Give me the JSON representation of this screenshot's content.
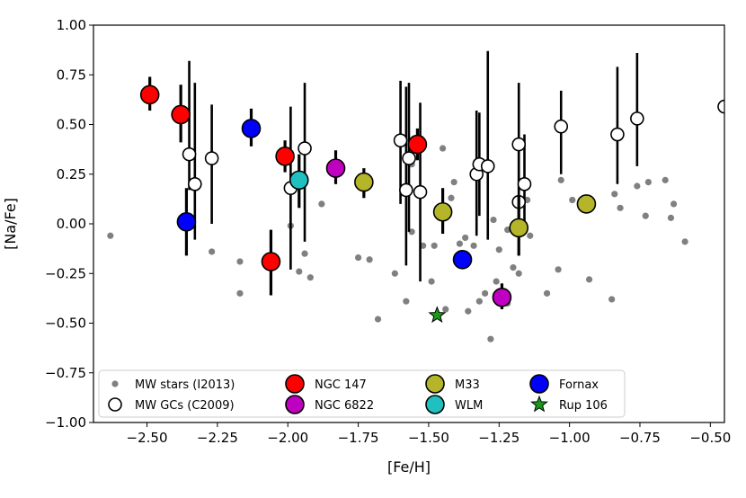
{
  "chart_data": {
    "type": "scatter",
    "xlabel": "[Fe/H]",
    "ylabel": "[Na/Fe]",
    "xlim": [
      -2.69,
      -0.45
    ],
    "ylim": [
      -1.0,
      1.0
    ],
    "xticks": [
      -2.5,
      -2.25,
      -2.0,
      -1.75,
      -1.5,
      -1.25,
      -1.0,
      -0.75,
      -0.5
    ],
    "xtick_labels": [
      "−2.50",
      "−2.25",
      "−2.00",
      "−1.75",
      "−1.50",
      "−1.25",
      "−1.00",
      "−0.75",
      "−0.50"
    ],
    "yticks": [
      1.0,
      0.75,
      0.5,
      0.25,
      0.0,
      -0.25,
      -0.5,
      -0.75,
      -1.0
    ],
    "ytick_labels": [
      "1.00",
      "0.75",
      "0.50",
      "0.25",
      "0.00",
      "−0.25",
      "−0.50",
      "−0.75",
      "−1.00"
    ],
    "legend": {
      "placement": "lower-center",
      "entries": [
        {
          "label": "MW stars (I2013)",
          "series": "mw_stars"
        },
        {
          "label": "NGC 147",
          "series": "ngc147"
        },
        {
          "label": "M33",
          "series": "m33"
        },
        {
          "label": "Fornax",
          "series": "fornax"
        },
        {
          "label": "MW GCs (C2009)",
          "series": "mw_gcs"
        },
        {
          "label": "NGC 6822",
          "series": "ngc6822"
        },
        {
          "label": "WLM",
          "series": "wlm"
        },
        {
          "label": "Rup 106",
          "series": "rup106"
        }
      ]
    },
    "series": [
      {
        "name": "MW stars (I2013)",
        "key": "mw_stars",
        "marker": "dot",
        "color": "#808080",
        "points": [
          [
            -2.63,
            -0.06
          ],
          [
            -2.27,
            -0.14
          ],
          [
            -2.17,
            -0.19
          ],
          [
            -2.17,
            -0.35
          ],
          [
            -1.99,
            -0.01
          ],
          [
            -1.96,
            -0.24
          ],
          [
            -1.94,
            -0.15
          ],
          [
            -1.92,
            -0.27
          ],
          [
            -1.88,
            0.1
          ],
          [
            -1.75,
            -0.17
          ],
          [
            -1.71,
            -0.18
          ],
          [
            -1.68,
            -0.48
          ],
          [
            -1.62,
            -0.25
          ],
          [
            -1.58,
            -0.39
          ],
          [
            -1.56,
            -0.04
          ],
          [
            -1.52,
            -0.11
          ],
          [
            -1.49,
            -0.29
          ],
          [
            -1.48,
            -0.11
          ],
          [
            -1.45,
            0.38
          ],
          [
            -1.44,
            -0.43
          ],
          [
            -1.42,
            0.13
          ],
          [
            -1.41,
            0.21
          ],
          [
            -1.39,
            -0.1
          ],
          [
            -1.37,
            -0.07
          ],
          [
            -1.36,
            -0.44
          ],
          [
            -1.34,
            -0.11
          ],
          [
            -1.32,
            -0.39
          ],
          [
            -1.3,
            -0.35
          ],
          [
            -1.28,
            -0.58
          ],
          [
            -1.27,
            0.02
          ],
          [
            -1.26,
            -0.29
          ],
          [
            -1.25,
            -0.13
          ],
          [
            -1.22,
            -0.03
          ],
          [
            -1.22,
            -0.4
          ],
          [
            -1.2,
            -0.22
          ],
          [
            -1.18,
            -0.25
          ],
          [
            -1.15,
            0.12
          ],
          [
            -1.14,
            -0.06
          ],
          [
            -1.08,
            -0.35
          ],
          [
            -1.04,
            -0.23
          ],
          [
            -1.03,
            0.22
          ],
          [
            -0.99,
            0.12
          ],
          [
            -0.93,
            -0.28
          ],
          [
            -0.85,
            -0.38
          ],
          [
            -0.84,
            0.15
          ],
          [
            -0.82,
            0.08
          ],
          [
            -0.76,
            0.19
          ],
          [
            -0.73,
            0.04
          ],
          [
            -0.72,
            0.21
          ],
          [
            -0.66,
            0.22
          ],
          [
            -0.64,
            0.03
          ],
          [
            -0.63,
            0.1
          ],
          [
            -0.59,
            -0.09
          ],
          [
            -1.56,
            0.3
          ]
        ]
      },
      {
        "name": "MW GCs (C2009)",
        "key": "mw_gcs",
        "marker": "circle",
        "color": "#ffffff",
        "points": [
          {
            "x": -2.35,
            "y": 0.35,
            "lo": 0.17,
            "hi": 0.82
          },
          {
            "x": -2.33,
            "y": 0.2,
            "lo": -0.08,
            "hi": 0.71
          },
          {
            "x": -2.27,
            "y": 0.33,
            "lo": 0.0,
            "hi": 0.6
          },
          {
            "x": -1.99,
            "y": 0.18,
            "lo": -0.23,
            "hi": 0.59
          },
          {
            "x": -1.94,
            "y": 0.38,
            "lo": -0.09,
            "hi": 0.71
          },
          {
            "x": -1.6,
            "y": 0.42,
            "lo": 0.1,
            "hi": 0.72
          },
          {
            "x": -1.58,
            "y": 0.17,
            "lo": -0.21,
            "hi": 0.69
          },
          {
            "x": -1.57,
            "y": 0.33,
            "lo": -0.04,
            "hi": 0.71
          },
          {
            "x": -1.53,
            "y": 0.16,
            "lo": -0.29,
            "hi": 0.61
          },
          {
            "x": -1.33,
            "y": 0.25,
            "lo": -0.06,
            "hi": 0.57
          },
          {
            "x": -1.32,
            "y": 0.3,
            "lo": 0.04,
            "hi": 0.56
          },
          {
            "x": -1.29,
            "y": 0.29,
            "lo": -0.08,
            "hi": 0.87
          },
          {
            "x": -1.18,
            "y": 0.4,
            "lo": 0.1,
            "hi": 0.71
          },
          {
            "x": -1.18,
            "y": 0.11,
            "lo": -0.16,
            "hi": 0.38
          },
          {
            "x": -1.16,
            "y": 0.2,
            "lo": -0.05,
            "hi": 0.45
          },
          {
            "x": -1.03,
            "y": 0.49,
            "lo": 0.25,
            "hi": 0.67
          },
          {
            "x": -0.83,
            "y": 0.45,
            "lo": 0.2,
            "hi": 0.79
          },
          {
            "x": -0.76,
            "y": 0.53,
            "lo": 0.29,
            "hi": 0.86
          },
          {
            "x": -0.45,
            "y": 0.59,
            "lo": 0.59,
            "hi": 0.59
          }
        ]
      },
      {
        "name": "NGC 147",
        "key": "ngc147",
        "marker": "circle",
        "color": "#ff0000",
        "points": [
          {
            "x": -2.49,
            "y": 0.65,
            "lo": 0.57,
            "hi": 0.74
          },
          {
            "x": -2.38,
            "y": 0.55,
            "lo": 0.41,
            "hi": 0.7
          },
          {
            "x": -2.06,
            "y": -0.19,
            "lo": -0.36,
            "hi": -0.03
          },
          {
            "x": -2.01,
            "y": 0.34,
            "lo": 0.26,
            "hi": 0.42
          },
          {
            "x": -1.54,
            "y": 0.4,
            "lo": 0.32,
            "hi": 0.48
          }
        ]
      },
      {
        "name": "NGC 6822",
        "key": "ngc6822",
        "marker": "circle",
        "color": "#c000c0",
        "points": [
          {
            "x": -1.83,
            "y": 0.28,
            "lo": 0.2,
            "hi": 0.37
          },
          {
            "x": -1.24,
            "y": -0.37,
            "lo": -0.43,
            "hi": -0.3
          }
        ]
      },
      {
        "name": "M33",
        "key": "m33",
        "marker": "circle",
        "color": "#b5b52a",
        "points": [
          {
            "x": -1.73,
            "y": 0.21,
            "lo": 0.13,
            "hi": 0.28
          },
          {
            "x": -1.45,
            "y": 0.06,
            "lo": -0.05,
            "hi": 0.18
          },
          {
            "x": -1.18,
            "y": -0.02,
            "lo": -0.16,
            "hi": 0.14
          },
          {
            "x": -0.94,
            "y": 0.1,
            "lo": 0.1,
            "hi": 0.1
          }
        ]
      },
      {
        "name": "Fornax",
        "key": "fornax",
        "marker": "circle",
        "color": "#0000ff",
        "points": [
          {
            "x": -2.36,
            "y": 0.01,
            "lo": -0.16,
            "hi": 0.18
          },
          {
            "x": -2.13,
            "y": 0.48,
            "lo": 0.39,
            "hi": 0.58
          },
          {
            "x": -1.38,
            "y": -0.18,
            "lo": -0.18,
            "hi": -0.18
          }
        ]
      },
      {
        "name": "WLM",
        "key": "wlm",
        "marker": "circle",
        "color": "#20c0c0",
        "points": [
          {
            "x": -1.96,
            "y": 0.22,
            "lo": 0.08,
            "hi": 0.35
          }
        ]
      },
      {
        "name": "Rup 106",
        "key": "rup106",
        "marker": "star",
        "color": "#1a9a1a",
        "points": [
          {
            "x": -1.47,
            "y": -0.46
          }
        ]
      }
    ]
  }
}
